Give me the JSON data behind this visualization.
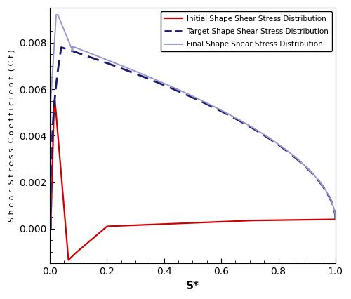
{
  "title": "",
  "xlabel": "S*",
  "ylabel": "S h e a r  S t r e s s  C o e f f i c i e n t  ( C f )",
  "xlim": [
    0,
    1.0
  ],
  "ylim": [
    -0.0015,
    0.0095
  ],
  "yticks": [
    0,
    0.002,
    0.004,
    0.006,
    0.008
  ],
  "xticks": [
    0,
    0.2,
    0.4,
    0.6,
    0.8,
    1.0
  ],
  "legend": [
    "Initial Shape Shear Stress Distribution",
    "Target Shape Shear Stress Distribution",
    "Final Shape Shear Stress Distribution"
  ],
  "colors": {
    "initial": "#cc0000",
    "target": "#1a1a6e",
    "final": "#9999cc"
  },
  "linewidths": {
    "initial": 1.6,
    "target": 2.0,
    "final": 1.4
  }
}
